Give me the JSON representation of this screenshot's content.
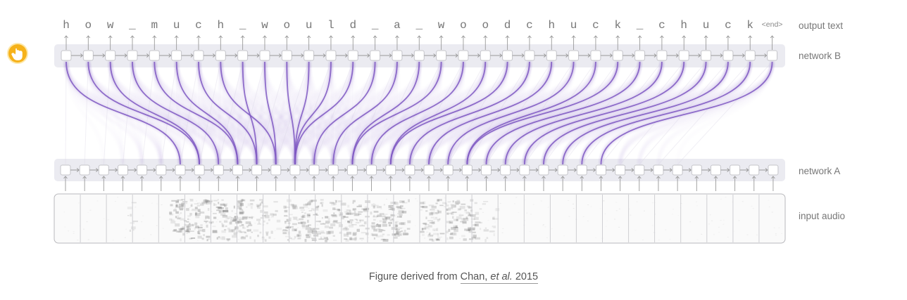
{
  "output_chars": [
    "h",
    "o",
    "w",
    "_",
    "m",
    "u",
    "c",
    "h",
    "_",
    "w",
    "o",
    "u",
    "l",
    "d",
    "_",
    "a",
    "_",
    "w",
    "o",
    "o",
    "d",
    "c",
    "h",
    "u",
    "c",
    "k",
    "_",
    "c",
    "h",
    "u",
    "c",
    "k"
  ],
  "end_token": "<end>",
  "labels": {
    "output_text": "output text",
    "network_b": "network B",
    "network_a": "network A",
    "input_audio": "input audio"
  },
  "caption": {
    "prefix": "Figure derived from ",
    "link_name": "Chan, ",
    "link_etal": "et al.",
    "link_year": " 2015"
  },
  "counts": {
    "output_nodes": 33,
    "input_nodes": 38
  },
  "attention_targets": [
    6,
    7,
    7,
    8,
    9,
    9,
    10,
    11,
    10,
    11,
    12,
    12,
    12,
    12,
    13,
    14,
    15,
    15,
    16,
    17,
    17,
    18,
    19,
    20,
    21,
    21,
    22,
    23,
    24,
    25,
    26,
    27,
    28
  ],
  "audio_frames": 28,
  "colors": {
    "accent": "#7e57c2",
    "node_fill": "#ffffff",
    "node_stroke": "#c8c8cc",
    "band": "#ebebf1",
    "text": "#777777"
  },
  "icons": {
    "badge": "hand-pointer-icon"
  }
}
